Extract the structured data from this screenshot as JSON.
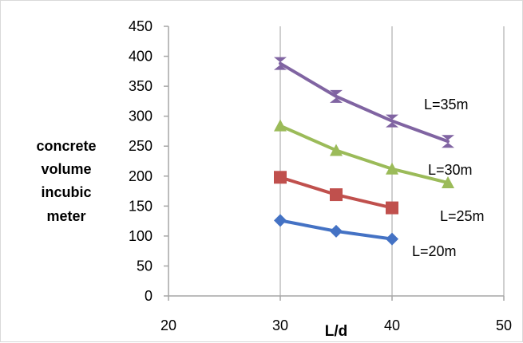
{
  "chart_data": {
    "type": "line",
    "title": "",
    "xlabel": "L/d",
    "ylabel_lines": [
      "concrete",
      "volume",
      "incubic",
      "meter"
    ],
    "xlim": [
      20,
      50
    ],
    "ylim": [
      0,
      450
    ],
    "x_ticks": [
      "20",
      "30",
      "40",
      "50"
    ],
    "y_ticks": [
      "0",
      "50",
      "100",
      "150",
      "200",
      "250",
      "300",
      "350",
      "400",
      "450"
    ],
    "grid": "vertical",
    "legend": "inline labels",
    "series": [
      {
        "name": "L=20m",
        "marker": "diamond",
        "color": "#4472c4",
        "x": [
          30,
          35,
          40
        ],
        "y": [
          126,
          108,
          95
        ]
      },
      {
        "name": "L=25m",
        "marker": "square",
        "color": "#c0504d",
        "x": [
          30,
          35,
          40
        ],
        "y": [
          198,
          169,
          147
        ]
      },
      {
        "name": "L=30m",
        "marker": "triangle",
        "color": "#9bbb59",
        "x": [
          30,
          35,
          40,
          45
        ],
        "y": [
          284,
          243,
          212,
          189
        ]
      },
      {
        "name": "L=35m",
        "marker": "hourglass",
        "color": "#8064a2",
        "x": [
          30,
          35,
          40,
          45
        ],
        "y": [
          388,
          333,
          292,
          258
        ]
      }
    ]
  }
}
